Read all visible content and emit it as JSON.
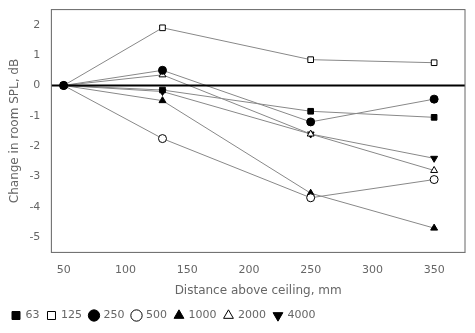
{
  "chart_data": {
    "type": "line",
    "xlabel": "Distance above ceiling, mm",
    "ylabel": "Change in room SPL, dB",
    "x": [
      50,
      130,
      250,
      350
    ],
    "series": [
      {
        "name": "63",
        "color": "#888888",
        "marker": "square",
        "values": [
          0.0,
          -0.15,
          -0.85,
          -1.05
        ]
      },
      {
        "name": "125",
        "color": "#888888",
        "marker": "square-open",
        "values": [
          0.0,
          1.9,
          0.85,
          0.75
        ]
      },
      {
        "name": "250",
        "color": "#888888",
        "marker": "circle",
        "values": [
          0.0,
          0.5,
          -1.2,
          -0.45
        ]
      },
      {
        "name": "500",
        "color": "#888888",
        "marker": "circle-open",
        "values": [
          0.0,
          -1.75,
          -3.7,
          -3.1
        ]
      },
      {
        "name": "1000",
        "color": "#888888",
        "marker": "triangle",
        "values": [
          0.0,
          -0.5,
          -3.55,
          -4.7
        ]
      },
      {
        "name": "2000",
        "color": "#888888",
        "marker": "triangle-open",
        "values": [
          0.0,
          0.35,
          -1.6,
          -2.8
        ]
      },
      {
        "name": "4000",
        "color": "#888888",
        "marker": "triangle-down",
        "values": [
          0.0,
          -0.2,
          -1.6,
          -2.4
        ]
      }
    ],
    "xlim": [
      40,
      375
    ],
    "ylim": [
      -5.5,
      2.5
    ],
    "xticks": [
      50,
      100,
      150,
      200,
      250,
      300,
      350
    ],
    "yticks": [
      -5,
      -4,
      -3,
      -2,
      -1,
      0,
      1,
      2
    ],
    "grid": false,
    "legend": "lower left",
    "hline": 0
  }
}
